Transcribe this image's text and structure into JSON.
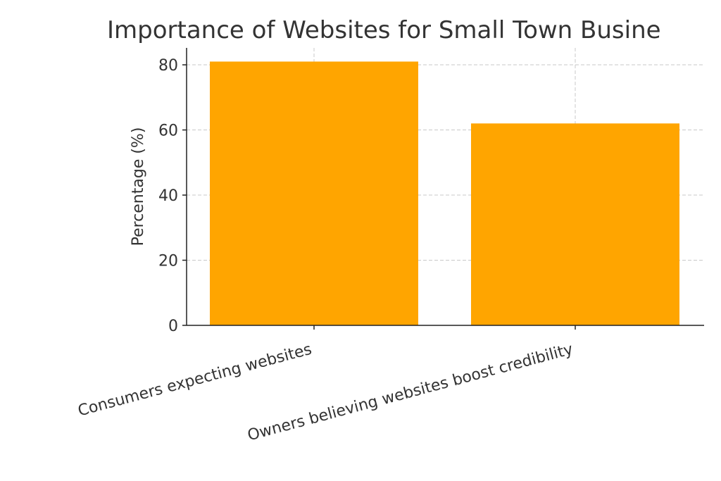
{
  "chart_data": {
    "type": "bar",
    "title": "Importance of Websites for Small Town Busine",
    "y_label": "Percentage (%)",
    "categories": [
      "Consumers expecting websites",
      "Owners believing websites boost credibility"
    ],
    "values": [
      81,
      62
    ],
    "color": "#ffa500",
    "ylim": [
      0,
      85.2
    ],
    "yticks": [
      0,
      20,
      40,
      60,
      80
    ],
    "grid": true
  }
}
